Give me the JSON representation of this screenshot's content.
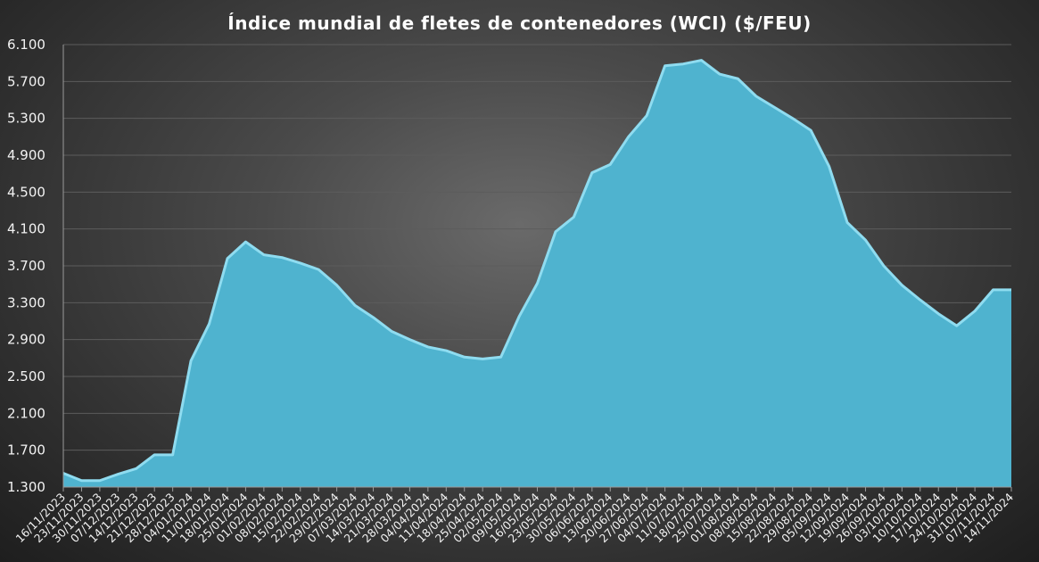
{
  "chart_data": {
    "type": "area",
    "title": "Índice mundial de fletes de contenedores (WCI) ($/FEU)",
    "xlabel": "",
    "ylabel": "",
    "ylim": [
      1300,
      6100
    ],
    "y_ticks": [
      1300,
      1700,
      2100,
      2500,
      2900,
      3300,
      3700,
      4100,
      4500,
      4900,
      5300,
      5700,
      6100
    ],
    "y_tick_labels": [
      "1.300",
      "1.700",
      "2.100",
      "2.500",
      "2.900",
      "3.300",
      "3.700",
      "4.100",
      "4.500",
      "4.900",
      "5.300",
      "5.700",
      "6.100"
    ],
    "grid": true,
    "legend": "none",
    "colors": {
      "area_fill": "#4fb3cf",
      "area_edge": "#8fdcf0",
      "grid": "#5c5c5c",
      "axis": "#9a9a9a"
    },
    "x_labels": [
      "16/11/2023",
      "23/11/2023",
      "30/11/2023",
      "07/12/2023",
      "14/12/2023",
      "21/12/2023",
      "28/12/2023",
      "04/01/2024",
      "11/01/2024",
      "18/01/2024",
      "25/01/2024",
      "01/02/2024",
      "08/02/2024",
      "15/02/2024",
      "22/02/2024",
      "29/02/2024",
      "07/03/2024",
      "14/03/2024",
      "21/03/2024",
      "28/03/2024",
      "04/04/2024",
      "11/04/2024",
      "18/04/2024",
      "25/04/2024",
      "02/05/2024",
      "09/05/2024",
      "16/05/2024",
      "23/05/2024",
      "30/05/2024",
      "06/06/2024",
      "13/06/2024",
      "20/06/2024",
      "27/06/2024",
      "04/07/2024",
      "11/07/2024",
      "18/07/2024",
      "25/07/2024",
      "01/08/2024",
      "08/08/2024",
      "15/08/2024",
      "22/08/2024",
      "29/08/2024",
      "05/09/2024",
      "12/09/2024",
      "19/09/2024",
      "26/09/2024",
      "03/10/2024",
      "10/10/2024",
      "17/10/2024",
      "24/10/2024",
      "31/10/2024",
      "07/11/2024",
      "14/11/2024"
    ],
    "values": [
      1450,
      1370,
      1370,
      1440,
      1500,
      1650,
      1650,
      2670,
      3070,
      3780,
      3960,
      3820,
      3790,
      3730,
      3660,
      3490,
      3270,
      3140,
      2990,
      2900,
      2820,
      2780,
      2710,
      2690,
      2710,
      3150,
      3510,
      4070,
      4230,
      4710,
      4800,
      5100,
      5330,
      5870,
      5890,
      5930,
      5780,
      5730,
      5540,
      5420,
      5300,
      5170,
      4780,
      4170,
      3980,
      3700,
      3490,
      3330,
      3180,
      3050,
      3210,
      3440,
      3440
    ]
  }
}
